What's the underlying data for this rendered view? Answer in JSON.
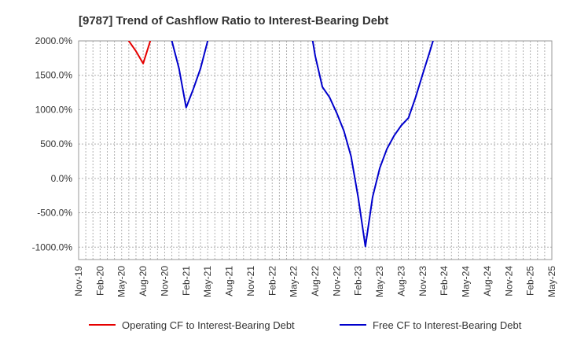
{
  "chart_data": {
    "type": "line",
    "title": "[9787]  Trend of Cashflow Ratio to Interest-Bearing Debt",
    "xlabel": "",
    "ylabel": "",
    "x_tick_labels": [
      "Nov-19",
      "Feb-20",
      "May-20",
      "Aug-20",
      "Nov-20",
      "Feb-21",
      "May-21",
      "Aug-21",
      "Nov-21",
      "Feb-22",
      "May-22",
      "Aug-22",
      "Nov-22",
      "Feb-23",
      "May-23",
      "Aug-23",
      "Nov-23",
      "Feb-24",
      "May-24",
      "Aug-24",
      "Nov-24",
      "Feb-25",
      "May-25"
    ],
    "y_ticks": [
      -1000,
      -500,
      0,
      500,
      1000,
      1500,
      2000
    ],
    "y_tick_labels": [
      "-1000.0%",
      "-500.0%",
      "0.0%",
      "500.0%",
      "1000.0%",
      "1500.0%",
      "2000.0%"
    ],
    "ylim": [
      -1180,
      2000
    ],
    "grid": true,
    "legend_position": "bottom",
    "series": [
      {
        "name": "Operating CF to Interest-Bearing Debt",
        "color": "#e60000",
        "x": [
          6,
          7,
          8,
          9,
          10
        ],
        "y": [
          2300,
          2000,
          1850,
          1670,
          2000
        ]
      },
      {
        "name": "Free CF to Interest-Bearing Debt",
        "color": "#0000cc",
        "x": [
          12,
          13,
          14,
          15,
          16,
          17,
          18,
          19,
          32,
          33,
          34,
          35,
          36,
          37,
          38,
          39,
          40,
          41,
          42,
          43,
          44,
          45,
          46,
          47,
          48,
          49,
          50,
          51
        ],
        "y": [
          2400,
          2000,
          1600,
          1030,
          1300,
          1600,
          2000,
          2400,
          2400,
          1780,
          1330,
          1180,
          950,
          690,
          320,
          -280,
          -990,
          -270,
          150,
          430,
          620,
          770,
          880,
          1180,
          1520,
          1850,
          2200,
          2400
        ]
      }
    ]
  }
}
